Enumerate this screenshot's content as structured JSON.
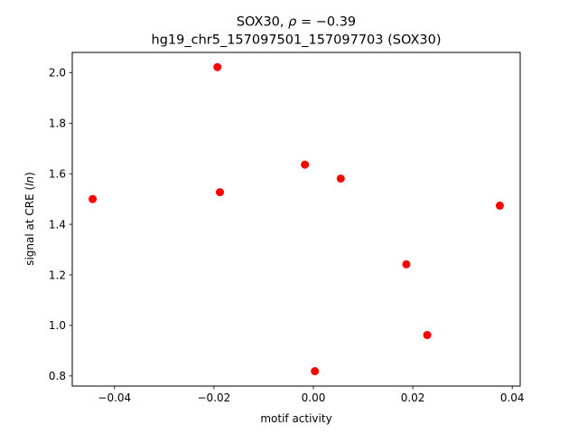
{
  "chart_data": {
    "type": "scatter",
    "title_line1_prefix": "SOX30, ",
    "title_line1_rho": "ρ",
    "title_line1_suffix": " = −0.39",
    "title_line2": "hg19_chr5_157097501_157097703 (SOX30)",
    "xlabel": "motif activity",
    "ylabel_prefix": "signal at CRE (",
    "ylabel_italic": "ln",
    "ylabel_suffix": ")",
    "xlim": [
      -0.0485,
      0.0416
    ],
    "ylim": [
      0.76,
      2.08
    ],
    "xticks": [
      -0.04,
      -0.02,
      0.0,
      0.02,
      0.04
    ],
    "xtick_labels": [
      "−0.04",
      "−0.02",
      "0.00",
      "0.02",
      "0.04"
    ],
    "yticks": [
      0.8,
      1.0,
      1.2,
      1.4,
      1.6,
      1.8,
      2.0
    ],
    "ytick_labels": [
      "0.8",
      "1.0",
      "1.2",
      "1.4",
      "1.6",
      "1.8",
      "2.0"
    ],
    "marker_color": "#ff0000",
    "grid": false,
    "points": [
      {
        "x": -0.0444,
        "y": 1.5
      },
      {
        "x": -0.0193,
        "y": 2.022
      },
      {
        "x": -0.0188,
        "y": 1.527
      },
      {
        "x": -0.0017,
        "y": 1.636
      },
      {
        "x": 0.0003,
        "y": 0.819
      },
      {
        "x": 0.0055,
        "y": 1.581
      },
      {
        "x": 0.0187,
        "y": 1.242
      },
      {
        "x": 0.0229,
        "y": 0.962
      },
      {
        "x": 0.0375,
        "y": 1.474
      }
    ]
  }
}
